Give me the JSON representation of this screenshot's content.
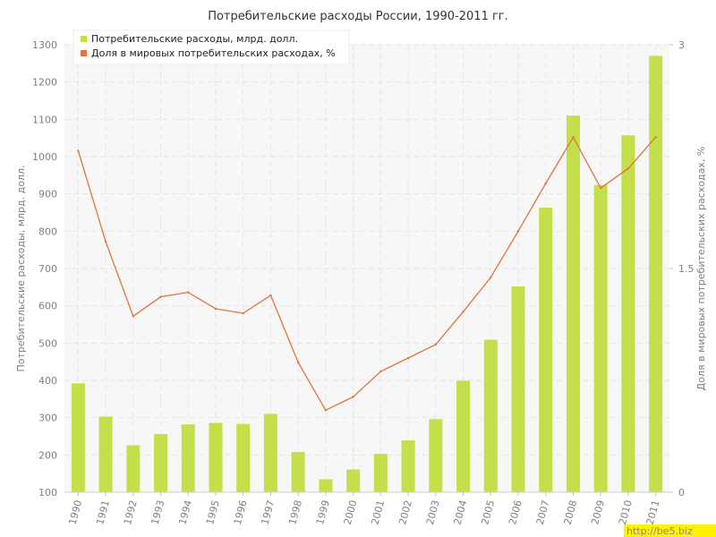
{
  "chart_data": {
    "type": "bar+line",
    "title": "Потребительские расходы России, 1990-2011 гг.",
    "categories": [
      "1990",
      "1991",
      "1992",
      "1993",
      "1994",
      "1995",
      "1996",
      "1997",
      "1998",
      "1999",
      "2000",
      "2001",
      "2002",
      "2003",
      "2004",
      "2005",
      "2006",
      "2007",
      "2008",
      "2009",
      "2010",
      "2011"
    ],
    "series": [
      {
        "name": "Потребительские расходы, млрд. долл.",
        "kind": "bar",
        "axis": "left",
        "color": "#c3e04a",
        "values": [
          392,
          303,
          226,
          256,
          282,
          286,
          283,
          310,
          208,
          135,
          161,
          203,
          239,
          296,
          399,
          509,
          652,
          863,
          1110,
          924,
          1057,
          1270
        ]
      },
      {
        "name": "Доля в мировых потребительских расходах, %",
        "kind": "line",
        "axis": "right",
        "color": "#e2733c",
        "values": [
          2.29,
          1.68,
          1.18,
          1.31,
          1.34,
          1.23,
          1.2,
          1.32,
          0.87,
          0.55,
          0.64,
          0.81,
          0.9,
          0.99,
          1.21,
          1.44,
          1.75,
          2.07,
          2.38,
          2.04,
          2.17,
          2.38
        ]
      }
    ],
    "ylabel": "Потребительские расходы, млрд. долл.",
    "ylabel_right": "Доля в мировых потребительских расходах, %",
    "ylim": [
      100,
      1300
    ],
    "yticks": [
      100,
      200,
      300,
      400,
      500,
      600,
      700,
      800,
      900,
      1000,
      1100,
      1200,
      1300
    ],
    "ylim_right": [
      0,
      3
    ],
    "yticks_right": [
      "0",
      "1.5",
      "3"
    ],
    "grid": true,
    "legend": "top-left"
  },
  "watermark": "http://be5.biz"
}
